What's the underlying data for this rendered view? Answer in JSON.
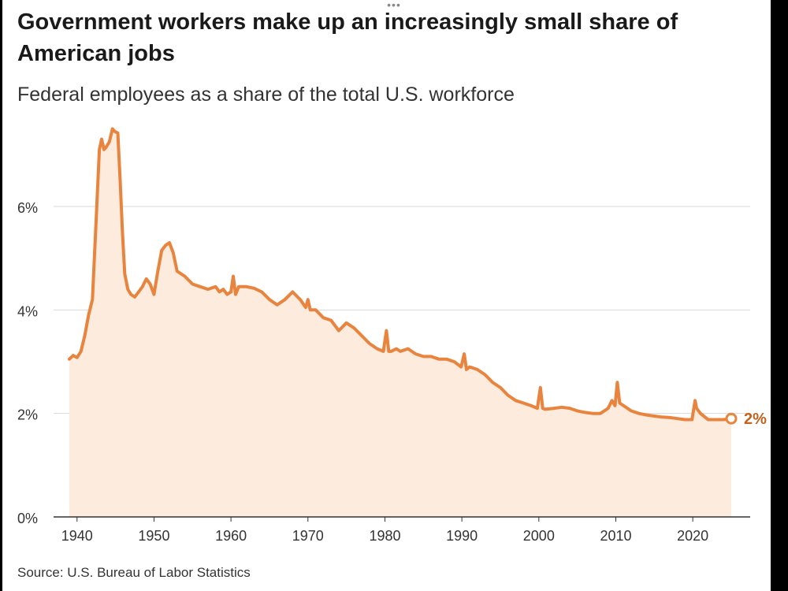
{
  "header": {
    "drag_handle": "•••",
    "title": "Government workers make up an increasingly small share of American jobs",
    "subtitle": "Federal employees as a share of the total U.S. workforce"
  },
  "footer": {
    "source": "Source: U.S. Bureau of Labor Statistics"
  },
  "colors": {
    "line": "#e8843e",
    "fill": "#fdebde",
    "end_label": "#c4611f",
    "grid": "#d9d9d9",
    "axis": "#333333"
  },
  "chart_data": {
    "type": "area",
    "title": "Government workers make up an increasingly small share of American jobs",
    "subtitle": "Federal employees as a share of the total U.S. workforce",
    "xlabel": "",
    "ylabel": "",
    "xlim": [
      1937,
      2030
    ],
    "ylim": [
      0,
      7.5
    ],
    "x_ticks": [
      1940,
      1950,
      1960,
      1970,
      1980,
      1990,
      2000,
      2010,
      2020
    ],
    "y_ticks": [
      {
        "value": 0,
        "label": "0%"
      },
      {
        "value": 2,
        "label": "2%"
      },
      {
        "value": 4,
        "label": "4%"
      },
      {
        "value": 6,
        "label": "6%"
      }
    ],
    "grid": true,
    "end_label": "2%",
    "series": [
      {
        "name": "Federal employees share of workforce",
        "x": [
          1939.0,
          1939.5,
          1940.0,
          1940.5,
          1941.0,
          1941.5,
          1942.0,
          1942.5,
          1942.9,
          1943.2,
          1943.5,
          1943.8,
          1944.2,
          1944.6,
          1944.9,
          1945.3,
          1945.6,
          1945.9,
          1946.2,
          1946.6,
          1947.0,
          1947.5,
          1948.0,
          1948.5,
          1949.0,
          1949.5,
          1950.0,
          1950.5,
          1951.0,
          1951.5,
          1952.0,
          1952.5,
          1953.0,
          1953.5,
          1954.0,
          1955.0,
          1956.0,
          1957.0,
          1958.0,
          1958.5,
          1959.0,
          1959.5,
          1960.0,
          1960.3,
          1960.6,
          1961.0,
          1962.0,
          1963.0,
          1964.0,
          1965.0,
          1966.0,
          1967.0,
          1968.0,
          1969.0,
          1969.7,
          1970.0,
          1970.3,
          1971.0,
          1972.0,
          1973.0,
          1974.0,
          1975.0,
          1976.0,
          1977.0,
          1978.0,
          1979.0,
          1979.8,
          1980.2,
          1980.5,
          1980.8,
          1981.5,
          1982.0,
          1983.0,
          1984.0,
          1985.0,
          1986.0,
          1987.0,
          1988.0,
          1989.0,
          1989.9,
          1990.3,
          1990.6,
          1991.0,
          1992.0,
          1993.0,
          1994.0,
          1995.0,
          1996.0,
          1997.0,
          1998.0,
          1999.0,
          1999.8,
          2000.2,
          2000.5,
          2000.8,
          2002.0,
          2003.0,
          2004.0,
          2005.0,
          2006.0,
          2007.0,
          2008.0,
          2009.0,
          2009.5,
          2009.9,
          2010.2,
          2010.5,
          2011.0,
          2012.0,
          2013.0,
          2014.0,
          2015.0,
          2016.0,
          2017.0,
          2018.0,
          2019.0,
          2019.9,
          2020.3,
          2020.5,
          2021.0,
          2022.0,
          2023.0,
          2024.0,
          2025.0
        ],
        "y": [
          3.05,
          3.12,
          3.08,
          3.2,
          3.5,
          3.9,
          4.2,
          5.8,
          7.1,
          7.3,
          7.1,
          7.15,
          7.25,
          7.5,
          7.45,
          7.42,
          6.5,
          5.5,
          4.7,
          4.4,
          4.3,
          4.25,
          4.35,
          4.45,
          4.6,
          4.5,
          4.3,
          4.75,
          5.15,
          5.25,
          5.3,
          5.1,
          4.75,
          4.7,
          4.65,
          4.5,
          4.45,
          4.4,
          4.45,
          4.35,
          4.4,
          4.3,
          4.35,
          4.65,
          4.3,
          4.45,
          4.45,
          4.42,
          4.35,
          4.2,
          4.1,
          4.2,
          4.35,
          4.2,
          4.05,
          4.2,
          4.0,
          4.0,
          3.85,
          3.8,
          3.6,
          3.75,
          3.65,
          3.5,
          3.35,
          3.25,
          3.2,
          3.6,
          3.2,
          3.2,
          3.25,
          3.2,
          3.25,
          3.15,
          3.1,
          3.1,
          3.05,
          3.05,
          3.0,
          2.9,
          3.15,
          2.85,
          2.9,
          2.85,
          2.75,
          2.6,
          2.5,
          2.35,
          2.25,
          2.2,
          2.15,
          2.1,
          2.5,
          2.1,
          2.08,
          2.1,
          2.12,
          2.1,
          2.05,
          2.02,
          2.0,
          2.0,
          2.1,
          2.25,
          2.15,
          2.6,
          2.2,
          2.15,
          2.05,
          2.0,
          1.97,
          1.95,
          1.93,
          1.92,
          1.9,
          1.88,
          1.88,
          2.25,
          2.1,
          2.0,
          1.88,
          1.88,
          1.88,
          1.9
        ]
      }
    ]
  }
}
